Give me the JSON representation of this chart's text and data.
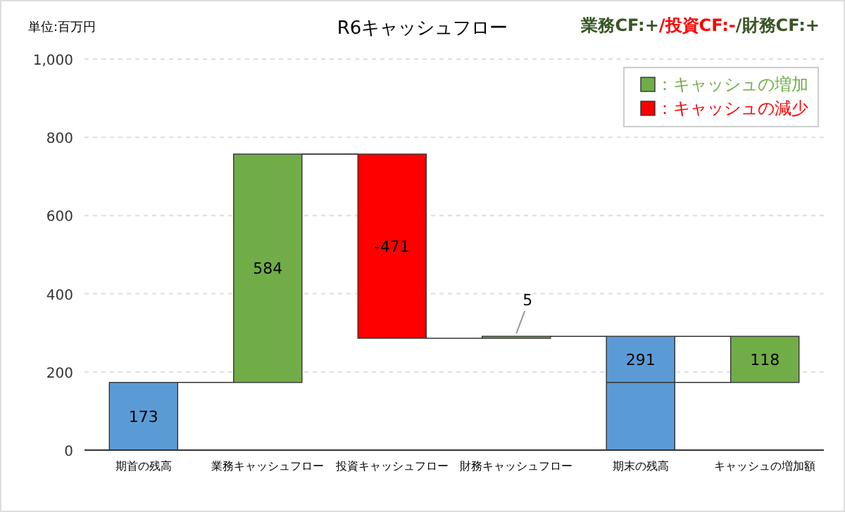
{
  "chart_data": {
    "type": "bar",
    "title": "R6キャッシュフロー",
    "ylabel": "単位:百万円",
    "annotations": [
      "業務CF:+",
      "/投資CF:-",
      "/財務CF:+"
    ],
    "categories": [
      "期首の残高",
      "業務キャッシュフロー",
      "投資キャッシュフロー",
      "財務キャッシュフロー",
      "期末の残高",
      "キャッシュの増加額"
    ],
    "series": [
      {
        "color": "#5b9bd5",
        "values": [
          173,
          null,
          null,
          null,
          291,
          null
        ],
        "base": [
          0,
          null,
          null,
          null,
          0,
          null
        ]
      },
      {
        "name": "：キャッシュの増加",
        "color": "#70ad47",
        "values": [
          null,
          584,
          null,
          5,
          null,
          118
        ],
        "base": [
          null,
          173,
          null,
          286,
          null,
          173
        ]
      },
      {
        "name": "：キャッシュの減少",
        "color": "#ff0000",
        "values": [
          null,
          null,
          -471,
          null,
          null,
          null
        ],
        "base": [
          null,
          null,
          757,
          null,
          null,
          null
        ]
      }
    ],
    "ylim": [
      0,
      1000
    ],
    "yticks": [
      0,
      200,
      400,
      600,
      800,
      {
        "value": 1000,
        "label": "1,000"
      }
    ],
    "grid": "y",
    "legend": "top right",
    "data_labels": true
  }
}
